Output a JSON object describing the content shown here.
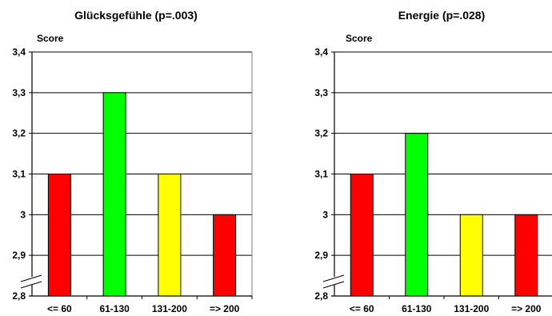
{
  "chart_data": [
    {
      "type": "bar",
      "title": "Glücksgefühle (p=.003)",
      "ylabel": "Score",
      "xlabel": "",
      "ylim": [
        2.8,
        3.4
      ],
      "yticks": [
        "2,8",
        "2,9",
        "3",
        "3,1",
        "3,2",
        "3,3",
        "3,4"
      ],
      "categories": [
        "<= 60",
        "61-130",
        "131-200",
        "=> 200"
      ],
      "values": [
        3.1,
        3.3,
        3.1,
        3.0
      ],
      "colors": [
        "#ff0000",
        "#00ff00",
        "#ffff00",
        "#ff0000"
      ],
      "grid": "horizontal",
      "axis_break": true
    },
    {
      "type": "bar",
      "title": "Energie  (p=.028)",
      "ylabel": "Score",
      "xlabel": "",
      "ylim": [
        2.8,
        3.4
      ],
      "yticks": [
        "2,8",
        "2,9",
        "3",
        "3,1",
        "3,2",
        "3,3",
        "3,4"
      ],
      "categories": [
        "<= 60",
        "61-130",
        "131-200",
        "=> 200"
      ],
      "values": [
        3.1,
        3.2,
        3.0,
        3.0
      ],
      "colors": [
        "#ff0000",
        "#00ff00",
        "#ffff00",
        "#ff0000"
      ],
      "grid": "horizontal",
      "axis_break": true
    }
  ]
}
